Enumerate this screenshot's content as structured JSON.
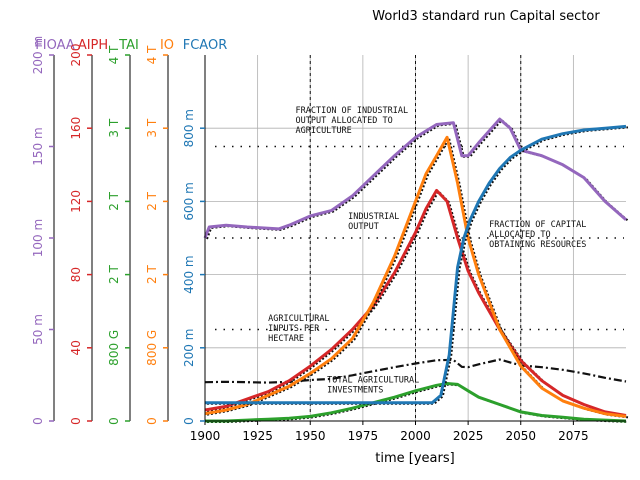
{
  "chart_data": {
    "type": "line",
    "title": "World3 standard run Capital sector",
    "xlabel": "time [years]",
    "xlim": [
      1900,
      2100
    ],
    "x_ticks": [
      "1900",
      "1925",
      "1950",
      "1975",
      "2000",
      "2025",
      "2050",
      "2075"
    ],
    "grid": true,
    "axes": [
      {
        "name": "FIOAA",
        "color": "#9467bd",
        "ylim": [
          0,
          0.2
        ],
        "tick_labels": [
          "0",
          "50 m",
          "100 m",
          "150 m",
          "200 m"
        ],
        "tick_values": [
          0,
          0.05,
          0.1,
          0.15,
          0.2
        ]
      },
      {
        "name": "AIPH",
        "color": "#d62728",
        "ylim": [
          0,
          200
        ],
        "tick_labels": [
          "0",
          "40",
          "80",
          "120",
          "160",
          "200"
        ],
        "tick_values": [
          0,
          40,
          80,
          120,
          160,
          200
        ]
      },
      {
        "name": "TAI",
        "color": "#2ca02c",
        "ylim": [
          0,
          4000000000000
        ],
        "tick_labels": [
          "0",
          "800 G",
          "2 T",
          "2 T",
          "3 T",
          "4 T"
        ],
        "tick_values": [
          0,
          800000000000,
          1600000000000,
          2400000000000,
          3200000000000,
          4000000000000
        ]
      },
      {
        "name": "IO",
        "color": "#ff7f0e",
        "ylim": [
          0,
          4000000000000
        ],
        "tick_labels": [
          "0",
          "800 G",
          "2 T",
          "2 T",
          "3 T",
          "4 T"
        ],
        "tick_values": [
          0,
          800000000000,
          1600000000000,
          2400000000000,
          3200000000000,
          4000000000000
        ]
      },
      {
        "name": "FCAOR",
        "color": "#1f77b4",
        "ylim": [
          0,
          1
        ],
        "tick_labels": [
          "0",
          "200 m",
          "400 m",
          "600 m",
          "800 m"
        ],
        "tick_values": [
          0,
          0.2,
          0.4,
          0.6,
          0.8
        ]
      }
    ],
    "series": [
      {
        "name": "FIOAA",
        "axis": 0,
        "color": "#9467bd",
        "x": [
          1900,
          1902,
          1910,
          1920,
          1935,
          1940,
          1950,
          1960,
          1970,
          1980,
          1990,
          2000,
          2010,
          2018,
          2022,
          2025,
          2030,
          2040,
          2045,
          2050,
          2060,
          2070,
          2080,
          2090,
          2100
        ],
        "y": [
          0.1,
          0.106,
          0.107,
          0.106,
          0.105,
          0.107,
          0.112,
          0.115,
          0.123,
          0.134,
          0.145,
          0.155,
          0.162,
          0.163,
          0.145,
          0.145,
          0.152,
          0.165,
          0.16,
          0.148,
          0.145,
          0.14,
          0.133,
          0.12,
          0.11
        ]
      },
      {
        "name": "AIPH",
        "axis": 1,
        "color": "#d62728",
        "x": [
          1900,
          1910,
          1920,
          1930,
          1940,
          1950,
          1960,
          1970,
          1980,
          1990,
          2000,
          2005,
          2010,
          2015,
          2020,
          2025,
          2030,
          2040,
          2050,
          2060,
          2070,
          2080,
          2090,
          2100
        ],
        "y": [
          6,
          8,
          12,
          16,
          22,
          30,
          39,
          50,
          63,
          81,
          103,
          116,
          126,
          120,
          100,
          82,
          70,
          50,
          33,
          22,
          14,
          9,
          5,
          3
        ]
      },
      {
        "name": "TAI",
        "axis": 2,
        "color": "#2ca02c",
        "x": [
          1900,
          1910,
          1920,
          1930,
          1940,
          1950,
          1960,
          1970,
          1980,
          1990,
          2000,
          2010,
          2015,
          2020,
          2025,
          2030,
          2040,
          2050,
          2060,
          2070,
          2080,
          2090,
          2100
        ],
        "y": [
          0,
          0,
          10000000000,
          20000000000,
          30000000000,
          50000000000,
          90000000000,
          140000000000,
          200000000000,
          260000000000,
          330000000000,
          390000000000,
          410000000000,
          400000000000,
          330000000000,
          260000000000,
          180000000000,
          100000000000,
          60000000000,
          40000000000,
          20000000000,
          10000000000,
          0
        ]
      },
      {
        "name": "IO",
        "axis": 3,
        "color": "#ff7f0e",
        "x": [
          1900,
          1910,
          1920,
          1930,
          1940,
          1950,
          1960,
          1970,
          1980,
          1990,
          2000,
          2005,
          2010,
          2015,
          2020,
          2025,
          2030,
          2040,
          2050,
          2060,
          2070,
          2080,
          2090,
          2100
        ],
        "y": [
          80000000000,
          120000000000,
          180000000000,
          280000000000,
          380000000000,
          520000000000,
          680000000000,
          900000000000,
          1300000000000,
          1800000000000,
          2400000000000,
          2700000000000,
          2900000000000,
          3100000000000,
          2600000000000,
          2000000000000,
          1600000000000,
          1000000000000,
          600000000000,
          360000000000,
          220000000000,
          140000000000,
          80000000000,
          50000000000
        ]
      },
      {
        "name": "FCAOR",
        "axis": 4,
        "color": "#1f77b4",
        "x": [
          1900,
          1950,
          2000,
          2005,
          2008,
          2012,
          2016,
          2018,
          2020,
          2023,
          2026,
          2030,
          2035,
          2040,
          2045,
          2050,
          2060,
          2070,
          2080,
          2090,
          2100
        ],
        "y": [
          0.05,
          0.05,
          0.05,
          0.05,
          0.05,
          0.07,
          0.18,
          0.3,
          0.42,
          0.5,
          0.55,
          0.6,
          0.65,
          0.69,
          0.72,
          0.74,
          0.77,
          0.785,
          0.795,
          0.8,
          0.805
        ]
      }
    ],
    "reference": {
      "x": [
        1900,
        1910,
        1920,
        1930,
        1940,
        1950,
        1960,
        1970,
        1980,
        1990,
        2000,
        2010,
        2018,
        2022,
        2025,
        2030,
        2040,
        2050,
        2060,
        2070,
        2080,
        2090,
        2100
      ],
      "y": [
        0.106,
        0.107,
        0.106,
        0.105,
        0.107,
        0.112,
        0.115,
        0.125,
        0.136,
        0.147,
        0.157,
        0.166,
        0.167,
        0.148,
        0.147,
        0.155,
        0.168,
        0.152,
        0.147,
        0.14,
        0.13,
        0.118,
        0.108
      ]
    },
    "annotations": [
      {
        "lines": [
          "FRACTION OF INDUSTRIAL",
          "OUTPUT ALLOCATED TO",
          "AGRICULTURE"
        ],
        "x": 1943,
        "y": 0.842
      },
      {
        "lines": [
          "INDUSTRIAL",
          "OUTPUT"
        ],
        "x": 1968,
        "y": 0.552
      },
      {
        "lines": [
          "FRACTION OF CAPITAL",
          "ALLOCATED TO",
          "OBTAINING RESOURCES"
        ],
        "x": 2035,
        "y": 0.53
      },
      {
        "lines": [
          "AGRICULTURAL",
          "INPUTS PER",
          "HECTARE"
        ],
        "x": 1930,
        "y": 0.273
      },
      {
        "lines": [
          "TOTAL AGRICULTURAL",
          "INVESTMENTS"
        ],
        "x": 1958,
        "y": 0.105
      }
    ]
  }
}
